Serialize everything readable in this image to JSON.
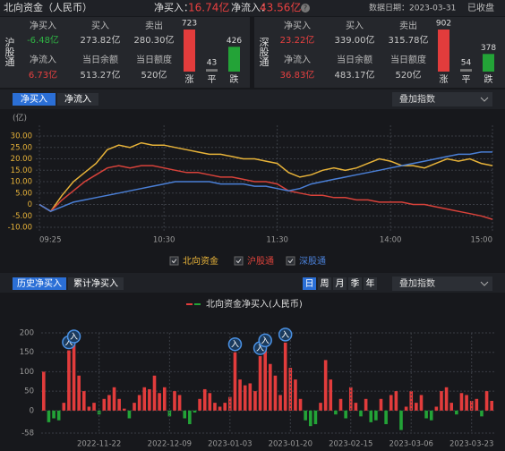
{
  "header": {
    "title": "北向资金（人民币）",
    "net_buy_label": "净买入：",
    "net_buy": "16.74亿",
    "net_inflow_label": "净流入：",
    "net_inflow": "43.56亿",
    "date": "数据日期：2023-03-31",
    "status": "已收盘"
  },
  "panels": [
    {
      "name": "沪股通",
      "cells": [
        {
          "label": "净买入",
          "value": "-6.48亿",
          "color": "#2fb344"
        },
        {
          "label": "买入",
          "value": "273.82亿",
          "color": "#c8c8c8"
        },
        {
          "label": "卖出",
          "value": "280.30亿",
          "color": "#c8c8c8"
        },
        {
          "label": "净流入",
          "value": "6.73亿",
          "color": "#e84040"
        },
        {
          "label": "当日余额",
          "value": "513.27亿",
          "color": "#c8c8c8"
        },
        {
          "label": "当日额度",
          "value": "520亿",
          "color": "#c8c8c8"
        }
      ],
      "breadth": {
        "categories": [
          "涨",
          "平",
          "跌"
        ],
        "values": [
          723,
          43,
          426
        ],
        "colors": [
          "#e23c3c",
          "#777777",
          "#23a337"
        ]
      }
    },
    {
      "name": "深股通",
      "cells": [
        {
          "label": "净买入",
          "value": "23.22亿",
          "color": "#e84040"
        },
        {
          "label": "买入",
          "value": "339.00亿",
          "color": "#c8c8c8"
        },
        {
          "label": "卖出",
          "value": "315.78亿",
          "color": "#c8c8c8"
        },
        {
          "label": "净流入",
          "value": "36.83亿",
          "color": "#e84040"
        },
        {
          "label": "当日余额",
          "value": "483.17亿",
          "color": "#c8c8c8"
        },
        {
          "label": "当日额度",
          "value": "520亿",
          "color": "#c8c8c8"
        }
      ],
      "breadth": {
        "categories": [
          "涨",
          "平",
          "跌"
        ],
        "values": [
          902,
          54,
          378
        ],
        "colors": [
          "#e23c3c",
          "#777777",
          "#23a337"
        ]
      }
    }
  ],
  "tabs_top": [
    "净买入",
    "净流入"
  ],
  "overlay_top": "叠加指数",
  "tabs_bottom": [
    "历史净买入",
    "累计净买入"
  ],
  "periods": [
    "日",
    "周",
    "月",
    "季",
    "年"
  ],
  "overlay_bottom": "叠加指数",
  "chart_data": [
    {
      "type": "line",
      "ylabel": "(亿)",
      "ylim": [
        -10,
        30
      ],
      "grid": true,
      "yticks": [
        {
          "value": 30,
          "label": "30.00"
        },
        {
          "value": 25,
          "label": "25.00"
        },
        {
          "value": 20,
          "label": "20.00"
        },
        {
          "value": 15,
          "label": "15.00"
        },
        {
          "value": 10,
          "label": "10.00"
        },
        {
          "value": 5,
          "label": "5.00"
        },
        0,
        {
          "value": -5,
          "label": "-5.00"
        },
        {
          "value": -10,
          "label": "-10.00"
        }
      ],
      "categories": [
        "09:25",
        null,
        null,
        null,
        null,
        null,
        null,
        null,
        null,
        null,
        null,
        "10:30",
        null,
        null,
        null,
        null,
        null,
        null,
        null,
        null,
        null,
        "11:30",
        null,
        null,
        null,
        null,
        null,
        null,
        null,
        null,
        null,
        "14:00",
        null,
        null,
        null,
        null,
        null,
        null,
        null,
        null,
        "15:00"
      ],
      "series": [
        {
          "name": "北向资金",
          "color": "#e8b339",
          "values": [
            0,
            -3,
            4,
            10,
            14,
            18,
            24,
            26,
            25,
            27,
            26,
            26,
            25,
            24,
            23,
            22,
            22,
            21,
            20,
            20,
            19,
            18,
            14,
            12,
            13,
            15,
            16,
            15,
            16,
            18,
            20,
            19,
            17,
            17,
            16,
            18,
            20,
            19,
            20,
            18,
            17
          ]
        },
        {
          "name": "沪股通",
          "color": "#d8423a",
          "values": [
            0,
            -3,
            2,
            6,
            10,
            13,
            16,
            17,
            16,
            17,
            17,
            16,
            15,
            14,
            14,
            13,
            12,
            12,
            11,
            10,
            10,
            9,
            6,
            5,
            4,
            4,
            3,
            3,
            2,
            2,
            1,
            1,
            1,
            0,
            0,
            -1,
            -2,
            -3,
            -4,
            -5,
            -6.5
          ]
        },
        {
          "name": "深股通",
          "color": "#4a7fd6",
          "values": [
            0,
            -3,
            -1,
            1,
            2,
            3,
            4,
            5,
            6,
            7,
            8,
            9,
            10,
            10,
            10,
            10,
            9,
            9,
            9,
            8,
            8,
            7,
            6,
            7,
            9,
            10,
            11,
            12,
            13,
            14,
            15,
            16,
            17,
            18,
            19,
            20,
            21,
            22,
            22,
            23,
            23
          ]
        }
      ]
    },
    {
      "type": "bar",
      "legend": "北向资金净买入(人民币)",
      "color": "#e23c3c",
      "negative_color": "#23a337",
      "ylim": [
        -58,
        200
      ],
      "yticks": [
        200,
        150,
        100,
        50,
        0,
        -58
      ],
      "categories": [
        null,
        null,
        null,
        null,
        null,
        null,
        null,
        null,
        null,
        null,
        null,
        "2022-11-22",
        null,
        null,
        null,
        null,
        null,
        null,
        null,
        null,
        null,
        null,
        null,
        null,
        null,
        "2022-12-09",
        null,
        null,
        null,
        null,
        null,
        null,
        null,
        null,
        null,
        null,
        null,
        "2023-01-03",
        null,
        null,
        null,
        null,
        null,
        null,
        null,
        null,
        null,
        null,
        null,
        "2023-01-20",
        null,
        null,
        null,
        null,
        null,
        null,
        null,
        null,
        null,
        null,
        null,
        "2023-02-15",
        null,
        null,
        null,
        null,
        null,
        null,
        null,
        null,
        null,
        null,
        null,
        "2023-03-06",
        null,
        null,
        null,
        null,
        null,
        null,
        null,
        null,
        null,
        null,
        null,
        "2023-03-23",
        null,
        null,
        null,
        null
      ],
      "values": [
        100,
        -30,
        -20,
        -25,
        20,
        155,
        170,
        90,
        50,
        10,
        20,
        -10,
        30,
        40,
        60,
        30,
        5,
        -20,
        20,
        40,
        60,
        55,
        90,
        45,
        60,
        -15,
        50,
        40,
        -20,
        -35,
        -5,
        30,
        55,
        45,
        20,
        10,
        20,
        35,
        150,
        80,
        65,
        70,
        50,
        140,
        160,
        120,
        90,
        40,
        175,
        110,
        80,
        30,
        -25,
        -40,
        -35,
        20,
        130,
        80,
        -10,
        30,
        -20,
        60,
        20,
        -15,
        30,
        -30,
        -25,
        30,
        -35,
        40,
        50,
        -50,
        10,
        50,
        20,
        40,
        -20,
        -25,
        10,
        50,
        60,
        20,
        -10,
        45,
        40,
        25,
        30,
        -15,
        50,
        25
      ],
      "annotations": [
        {
          "index": 5,
          "text": "入"
        },
        {
          "index": 6,
          "text": "入"
        },
        {
          "index": 38,
          "text": "入"
        },
        {
          "index": 43,
          "text": "入"
        },
        {
          "index": 44,
          "text": "入"
        },
        {
          "index": 48,
          "text": "入"
        }
      ]
    }
  ]
}
